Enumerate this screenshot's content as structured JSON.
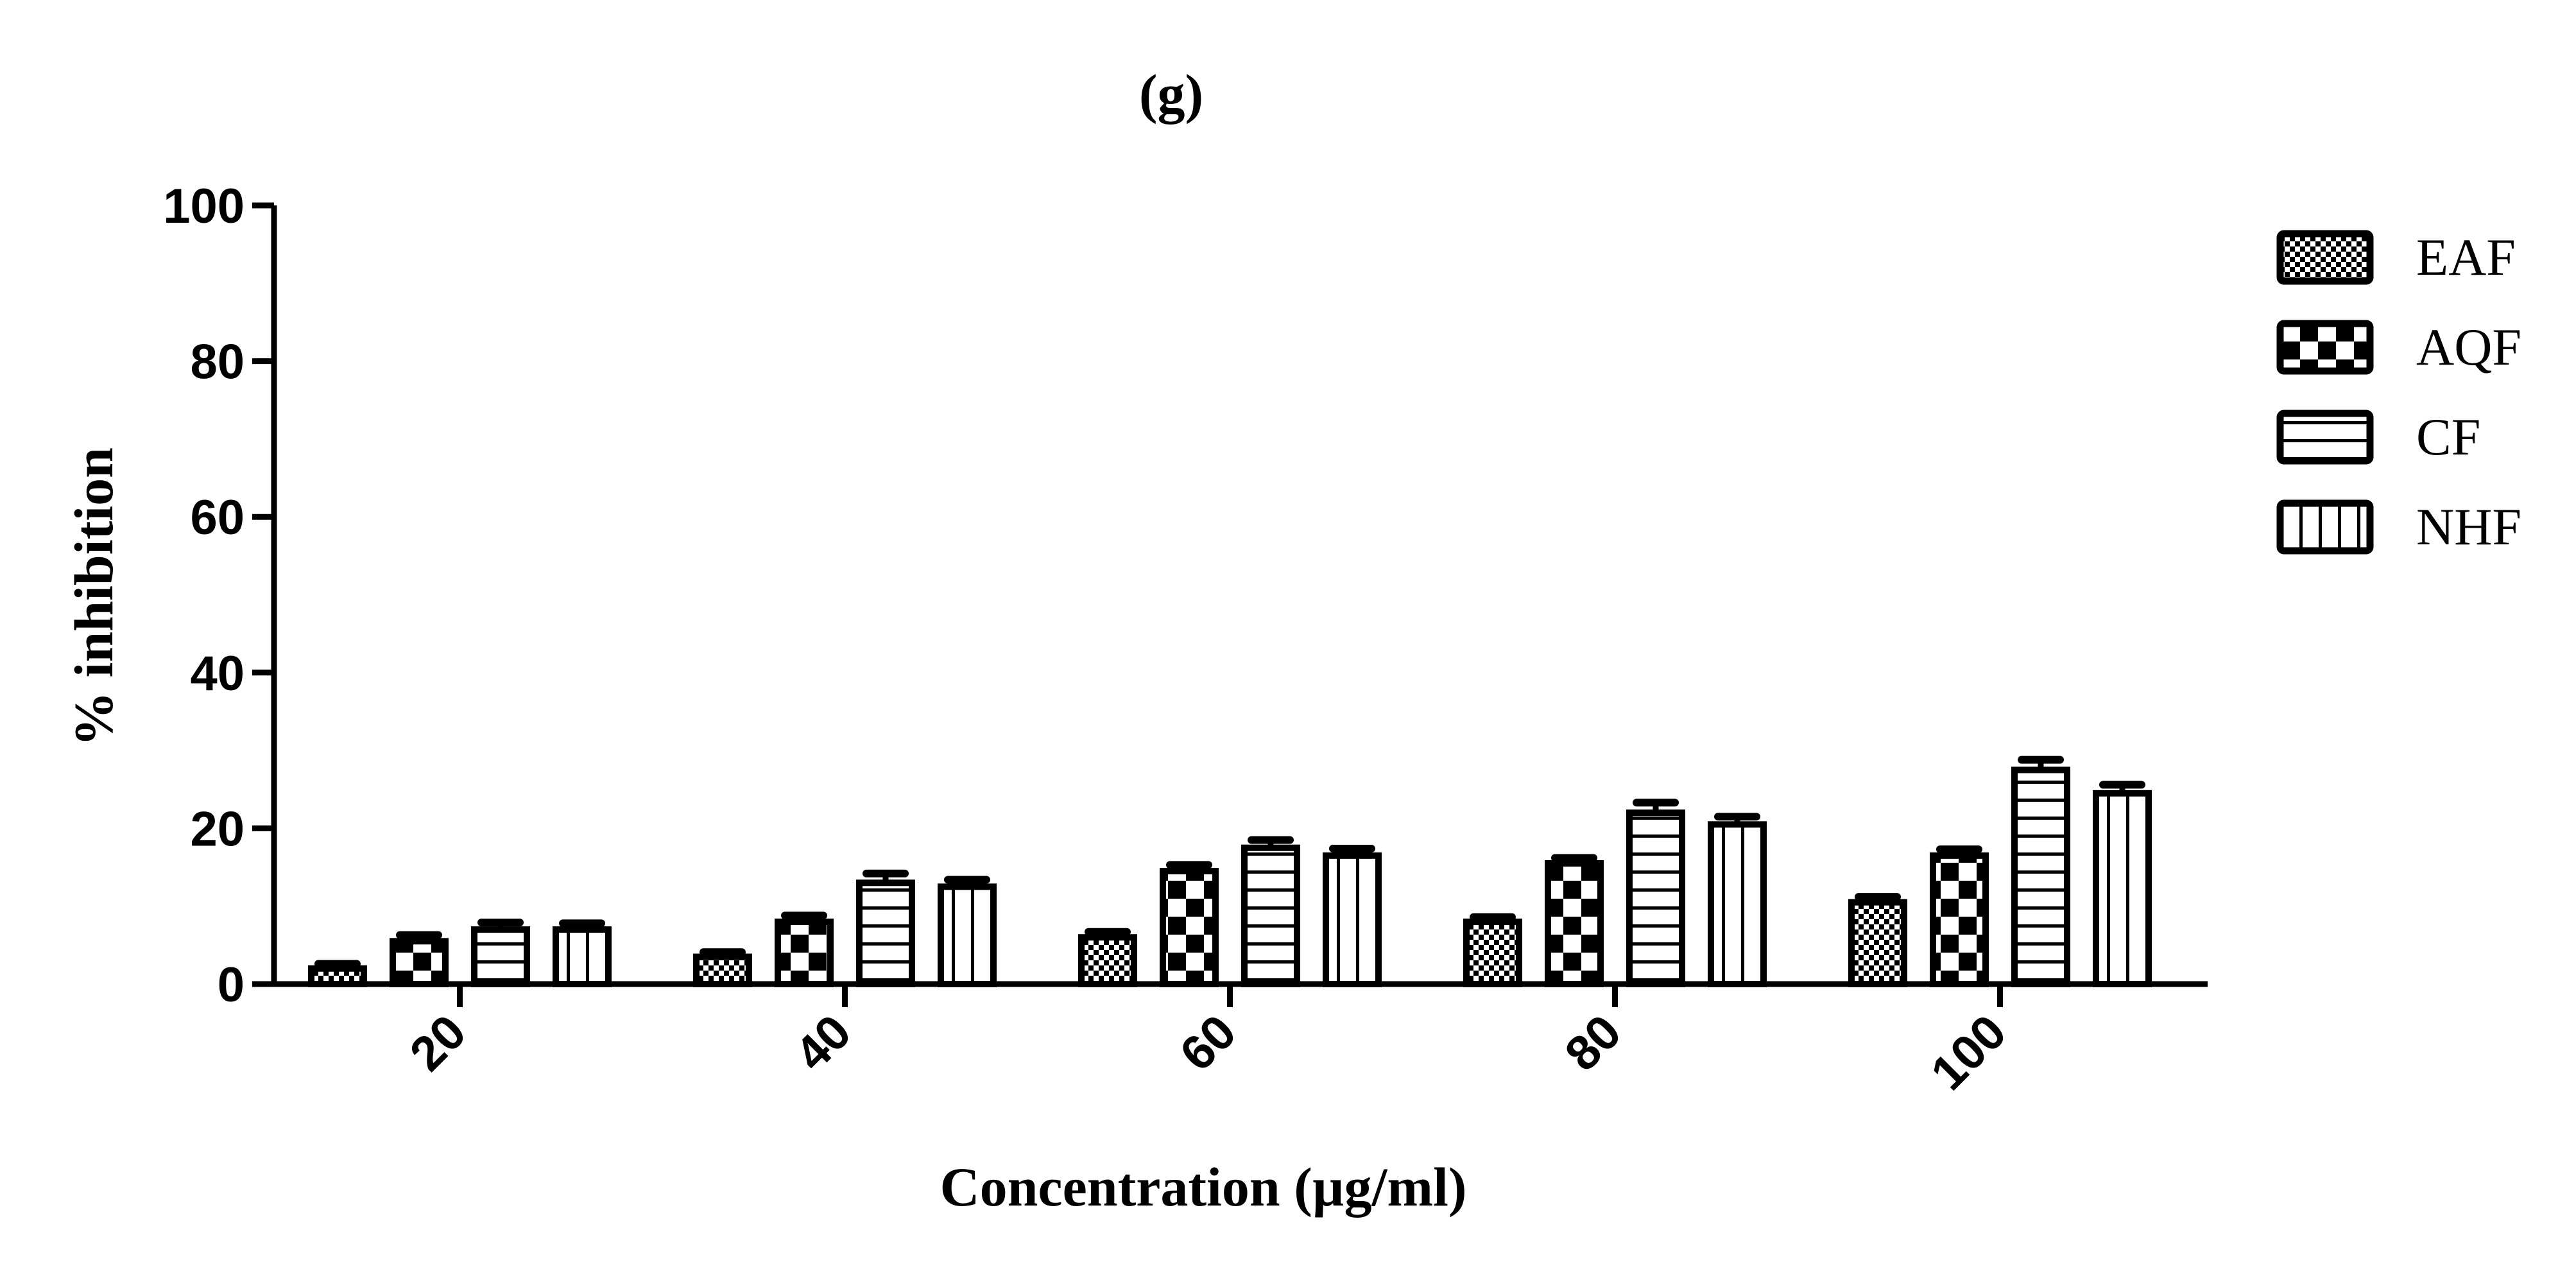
{
  "chart_data": {
    "type": "bar",
    "title": "(g)",
    "xlabel": "Concentration (µg/ml)",
    "ylabel": "% inhibition",
    "categories": [
      "20",
      "40",
      "60",
      "80",
      "100"
    ],
    "ylim": [
      0,
      100
    ],
    "yticks": [
      "0",
      "20",
      "40",
      "60",
      "80",
      "100"
    ],
    "series": [
      {
        "name": "EAF",
        "values": [
          2,
          3.5,
          6,
          8,
          10.5
        ],
        "errors": [
          0.6,
          0.6,
          0.7,
          0.6,
          0.7
        ],
        "pattern": "fine-checker"
      },
      {
        "name": "AQF",
        "values": [
          5.5,
          8,
          14.5,
          15.5,
          16.5
        ],
        "errors": [
          0.8,
          0.8,
          0.8,
          0.7,
          0.8
        ],
        "pattern": "checker"
      },
      {
        "name": "CF",
        "values": [
          7,
          13,
          17.5,
          22,
          27.5
        ],
        "errors": [
          0.9,
          1.2,
          1.0,
          1.3,
          1.3
        ],
        "pattern": "horizontal-lines"
      },
      {
        "name": "NHF",
        "values": [
          7,
          12.5,
          16.5,
          20.5,
          24.5
        ],
        "errors": [
          0.8,
          0.9,
          0.9,
          1.0,
          1.1
        ],
        "pattern": "vertical-lines"
      }
    ],
    "grid": false,
    "legend_position": "right",
    "colors": {
      "bar_stroke": "#000000",
      "bar_fill": "#ffffff"
    }
  }
}
